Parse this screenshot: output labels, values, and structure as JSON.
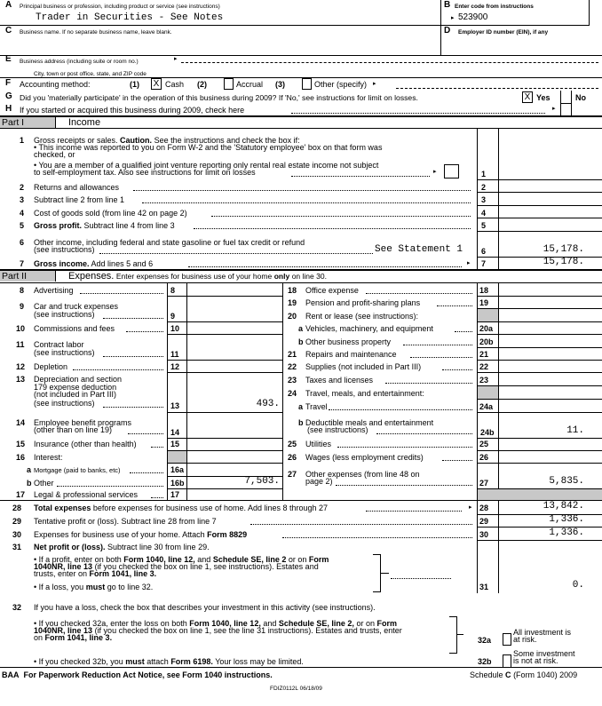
{
  "header": {
    "A": {
      "letter": "A",
      "label": "Principal business or profession, including product or service (see instructions)",
      "value": "Trader in Securities - See Notes"
    },
    "B": {
      "letter": "B",
      "label": "Enter code from instructions",
      "value": "523900"
    },
    "C": {
      "letter": "C",
      "label": "Business name. If no separate business name, leave blank."
    },
    "D": {
      "letter": "D",
      "label": "Employer ID number (EIN), if any"
    },
    "E": {
      "letter": "E",
      "label": "Business address (including suite or room no.)",
      "city_label": "City, town or post office, state, and ZIP code"
    },
    "F": {
      "letter": "F",
      "label": "Accounting method:",
      "opt1_num": "(1)",
      "opt1_mark": "X",
      "opt1_label": "Cash",
      "opt2_num": "(2)",
      "opt2_label": "Accrual",
      "opt3_num": "(3)",
      "opt3_label": "Other (specify)"
    },
    "G": {
      "letter": "G",
      "label": "Did you 'materially participate' in the operation of this business during 2009? If 'No,' see instructions for limit on losses.",
      "yes_mark": "X",
      "yes": "Yes",
      "no": "No"
    },
    "H": {
      "letter": "H",
      "label": "If you started or acquired this business during 2009, check here"
    }
  },
  "part1": {
    "tag": "Part I",
    "title": "Income",
    "line1": {
      "num": "1",
      "label_a": "Gross receipts or sales.",
      "label_b": "Caution.",
      "label_c": "See the instructions and check the box if:",
      "bullet1": "• This income was reported to you on Form W-2 and the 'Statutory employee' box on that form was",
      "bullet1b": "checked, or",
      "bullet2": "• You are a member of a qualified joint venture reporting only rental real estate income not subject",
      "bullet2b": "to self-employment tax. Also see instructions for limit on losses",
      "box": "1"
    },
    "line2": {
      "num": "2",
      "label": "Returns and allowances",
      "box": "2"
    },
    "line3": {
      "num": "3",
      "label": "Subtract line 2 from line 1",
      "box": "3"
    },
    "line4": {
      "num": "4",
      "label": "Cost of goods sold (from line 42 on page 2)",
      "box": "4"
    },
    "line5": {
      "num": "5",
      "label_bold": "Gross profit.",
      "label": "Subtract line 4 from line 3",
      "box": "5"
    },
    "line6": {
      "num": "6",
      "label": "Other income, including federal and state gasoline or fuel tax credit or refund",
      "label2": "(see instructions)",
      "note": "See Statement 1",
      "box": "6",
      "value": "15,178."
    },
    "line7": {
      "num": "7",
      "label_bold": "Gross income.",
      "label": "Add lines 5 and 6",
      "box": "7",
      "value": "15,178."
    }
  },
  "part2": {
    "tag": "Part II",
    "title": "Expenses.",
    "subtitle_a": "Enter expenses for business use of your home",
    "subtitle_b": "only",
    "subtitle_c": "on line 30.",
    "left": {
      "l8": {
        "num": "8",
        "label": "Advertising",
        "box": "8"
      },
      "l9": {
        "num": "9",
        "label": "Car and truck expenses",
        "label2": "(see instructions)",
        "box": "9"
      },
      "l10": {
        "num": "10",
        "label": "Commissions and fees",
        "box": "10"
      },
      "l11": {
        "num": "11",
        "label": "Contract labor",
        "label2": "(see instructions)",
        "box": "11"
      },
      "l12": {
        "num": "12",
        "label": "Depletion",
        "box": "12"
      },
      "l13": {
        "num": "13",
        "label": "Depreciation and section",
        "label2": "179 expense deduction",
        "label3": "(not included in Part III)",
        "label4": "(see instructions)",
        "box": "13",
        "value": "493."
      },
      "l14": {
        "num": "14",
        "label": "Employee benefit programs",
        "label2": "(other than on line 19)",
        "box": "14"
      },
      "l15": {
        "num": "15",
        "label": "Insurance (other than health)",
        "box": "15"
      },
      "l16": {
        "num": "16",
        "label": "Interest:"
      },
      "l16a": {
        "num": "a",
        "label": "Mortgage (paid to banks, etc)",
        "box": "16a"
      },
      "l16b": {
        "num": "b",
        "label": "Other",
        "box": "16b",
        "value": "7,503."
      },
      "l17": {
        "num": "17",
        "label": "Legal & professional services",
        "box": "17"
      }
    },
    "right": {
      "l18": {
        "num": "18",
        "label": "Office expense",
        "box": "18"
      },
      "l19": {
        "num": "19",
        "label": "Pension and profit-sharing plans",
        "box": "19"
      },
      "l20": {
        "num": "20",
        "label": "Rent or lease (see instructions):"
      },
      "l20a": {
        "num": "a",
        "label": "Vehicles, machinery, and equipment",
        "box": "20a"
      },
      "l20b": {
        "num": "b",
        "label": "Other business property",
        "box": "20b"
      },
      "l21": {
        "num": "21",
        "label": "Repairs and maintenance",
        "box": "21"
      },
      "l22": {
        "num": "22",
        "label": "Supplies (not included in Part III)",
        "box": "22"
      },
      "l23": {
        "num": "23",
        "label": "Taxes and licenses",
        "box": "23"
      },
      "l24": {
        "num": "24",
        "label": "Travel, meals, and entertainment:"
      },
      "l24a": {
        "num": "a",
        "label": "Travel",
        "box": "24a"
      },
      "l24b": {
        "num": "b",
        "label": "Deductible meals and entertainment",
        "label2": "(see instructions)",
        "box": "24b",
        "value": "11."
      },
      "l25": {
        "num": "25",
        "label": "Utilities",
        "box": "25"
      },
      "l26": {
        "num": "26",
        "label": "Wages (less employment credits)",
        "box": "26"
      },
      "l27": {
        "num": "27",
        "label": "Other expenses (from line 48 on",
        "label2": "page 2)",
        "box": "27",
        "value": "5,835."
      }
    },
    "l28": {
      "num": "28",
      "label_bold": "Total expenses",
      "label": "before expenses for business use of home. Add lines 8 through 27",
      "box": "28",
      "value": "13,842."
    },
    "l29": {
      "num": "29",
      "label": "Tentative profit or (loss). Subtract line 28 from line 7",
      "box": "29",
      "value": "1,336."
    },
    "l30": {
      "num": "30",
      "label": "Expenses for business use of your home. Attach",
      "label_bold": "Form 8829",
      "box": "30",
      "value": "1,336."
    },
    "l31": {
      "num": "31",
      "label_bold": "Net profit or (loss).",
      "label": "Subtract line 30 from line 29.",
      "b1a": "• If a profit, enter on both",
      "b1b": "Form 1040, line 12,",
      "b1c": "and",
      "b1d": "Schedule SE, line 2",
      "b1e": "or on",
      "b1f": "Form",
      "b1g": "1040NR, line 13",
      "b1h": "(if you checked the box on line 1, see instructions). Estates and",
      "b1i": "trusts, enter on",
      "b1j": "Form 1041, line 3.",
      "b2a": "• If a loss, you",
      "b2b": "must",
      "b2c": "go to line 32.",
      "box": "31",
      "value": "0."
    },
    "l32": {
      "num": "32",
      "label": "If you have a loss, check the box that describes your investment in this activity (see instructions).",
      "b1a": "• If you checked 32a, enter the loss on both",
      "b1b": "Form 1040, line 12,",
      "b1c": "and",
      "b1d": "Schedule SE, line 2,",
      "b1e": "or on",
      "b1f": "Form",
      "b1g": "1040NR, line 13",
      "b1h": "(if you checked the box on line 1, see the line 31 instructions). Estates and trusts, enter",
      "b1i": "on",
      "b1j": "Form 1041, line 3.",
      "b2a": "• If you checked 32b, you",
      "b2b": "must",
      "b2c": "attach",
      "b2d": "Form 6198.",
      "b2e": "Your loss may be limited.",
      "a_box": "32a",
      "a_label": "All investment is",
      "a_label2": "at risk.",
      "b_box": "32b",
      "b_label": "Some investment",
      "b_label2": "is not at risk."
    }
  },
  "footer": {
    "baa": "BAA",
    "notice": "For Paperwork Reduction Act Notice, see Form 1040 instructions.",
    "form_a": "Schedule",
    "form_b": "C",
    "form_c": "(Form 1040) 2009",
    "code": "FDIZ0112L   06/18/09"
  }
}
